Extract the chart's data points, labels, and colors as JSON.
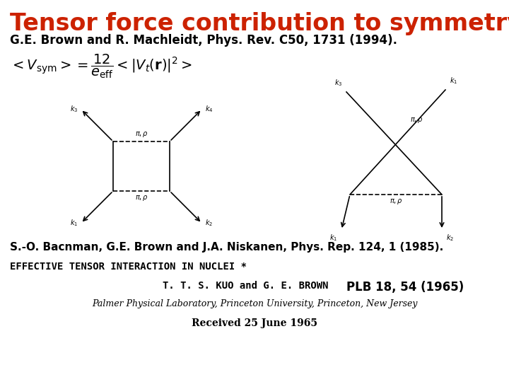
{
  "title": "Tensor force contribution to symmetry energy",
  "title_color": "#cc2200",
  "title_fontsize": 24,
  "subtitle": "G.E. Brown and R. Machleidt, Phys. Rev. C50, 1731 (1994).",
  "subtitle_fontsize": 12,
  "ref1": "S.-O. Bacnman, G.E. Brown and J.A. Niskanen, Phys. Rep. 124, 1 (1985).",
  "ref1_fontsize": 11,
  "paper_title": "EFFECTIVE TENSOR INTERACTION IN NUCLEI *",
  "paper_title_fontsize": 10,
  "authors": "T. T. S. KUO and G. E. BROWN",
  "authors_fontsize": 10,
  "plb": "PLB 18, 54 (1965)",
  "plb_fontsize": 12,
  "institution": "Palmer Physical Laboratory, Princeton University, Princeton, New Jersey",
  "institution_fontsize": 9,
  "received": "Received 25 June 1965",
  "received_fontsize": 10,
  "bg_color": "#ffffff"
}
